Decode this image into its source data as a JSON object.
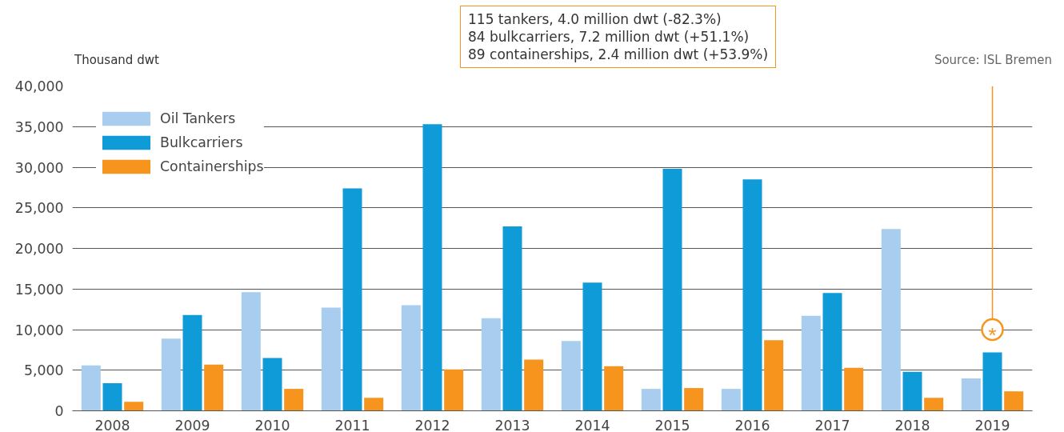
{
  "chart_data": {
    "type": "bar",
    "ylabel": "Thousand dwt",
    "categories": [
      "2008",
      "2009",
      "2010",
      "2011",
      "2012",
      "2013",
      "2014",
      "2015",
      "2016",
      "2017",
      "2018",
      "2019"
    ],
    "series": [
      {
        "name": "Oil Tankers",
        "color": "#a8cdee",
        "values": [
          5600,
          8900,
          14600,
          12700,
          13000,
          11400,
          8600,
          2700,
          2700,
          11700,
          22400,
          4000
        ]
      },
      {
        "name": "Bulkcarriers",
        "color": "#0e9bd8",
        "values": [
          3400,
          11800,
          6500,
          27400,
          35300,
          22700,
          15800,
          29800,
          28500,
          14500,
          4800,
          7200
        ]
      },
      {
        "name": "Containerships",
        "color": "#f7941d",
        "values": [
          1100,
          5700,
          2700,
          1600,
          5100,
          6300,
          5500,
          2800,
          8700,
          5300,
          1600,
          2400
        ]
      }
    ],
    "ylim": [
      0,
      40000
    ],
    "yticks": [
      {
        "value": 0,
        "label": "0"
      },
      {
        "value": 5000,
        "label": "5,000"
      },
      {
        "value": 10000,
        "label": "10,000"
      },
      {
        "value": 15000,
        "label": "15,000"
      },
      {
        "value": 20000,
        "label": "20,000"
      },
      {
        "value": 25000,
        "label": "25,000"
      },
      {
        "value": 30000,
        "label": "30,000"
      },
      {
        "value": 35000,
        "label": "35,000"
      },
      {
        "value": 40000,
        "label": "40,000"
      }
    ],
    "grid": "y",
    "legend": "top left",
    "annotations": [
      "Source: ISL Bremen",
      "115 tankers, 4.0 million dwt (-82.3%)\n84 bulkcarriers, 7.2 million dwt (+51.1%)\n89 containerships, 2.4 million dwt (+53.9%)",
      {
        "text": "*",
        "x": "2019",
        "y": 10000
      }
    ]
  }
}
